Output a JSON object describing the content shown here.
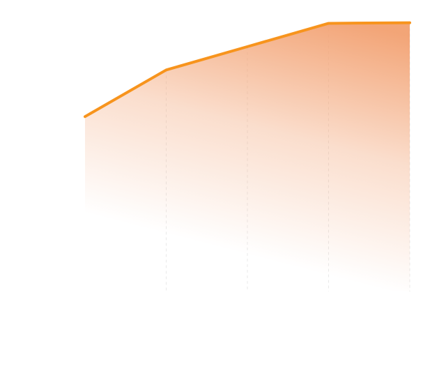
{
  "chart_data": {
    "type": "area",
    "x": [
      0,
      1,
      2,
      3,
      4
    ],
    "series": [
      {
        "values": [
          60,
          76,
          84,
          92,
          92.2
        ]
      }
    ],
    "ylim": [
      0,
      100
    ],
    "grid": true,
    "legend": "none",
    "line_color": "#f7941d",
    "fill_color": "#f2a070"
  }
}
